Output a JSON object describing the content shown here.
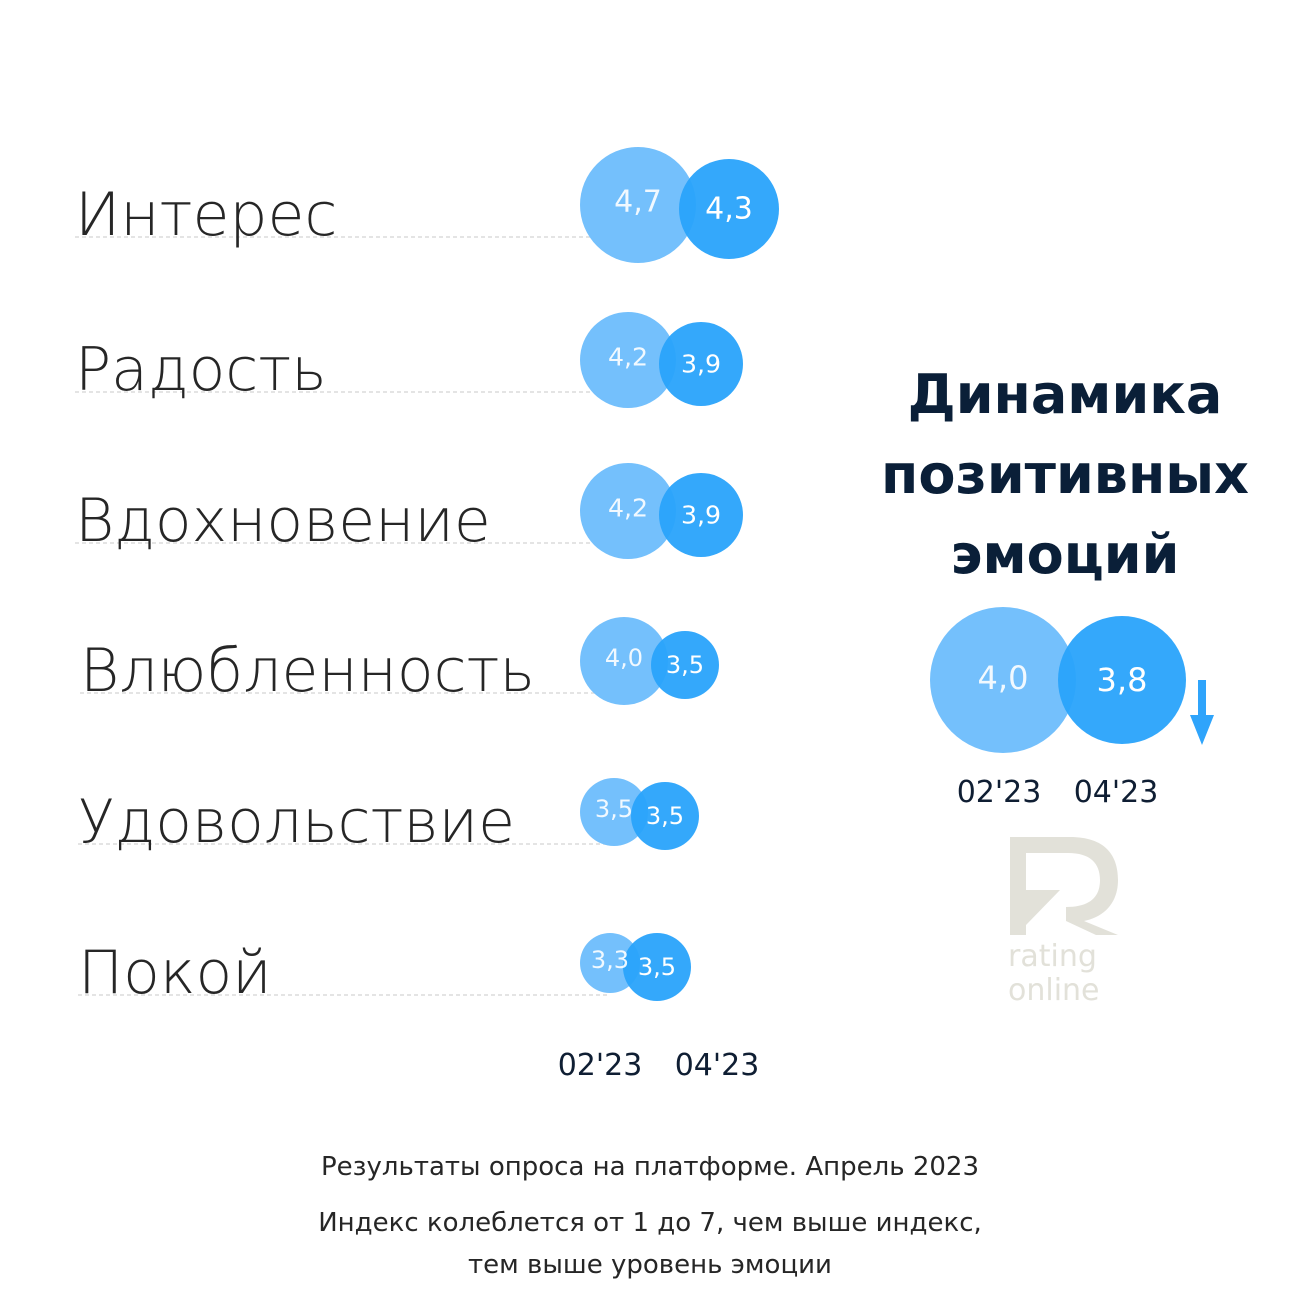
{
  "title_lines": [
    "Динамика",
    "позитивных",
    "эмоций"
  ],
  "periods": [
    "02'23",
    "04'23"
  ],
  "footer": {
    "line1": "Результаты опроса на платформе. Апрель 2023",
    "line2": "Индекс колеблется от 1 до 7, чем выше индекс,",
    "line3": "тем выше уровень эмоции"
  },
  "logo": {
    "line1": "rating",
    "line2": "online"
  },
  "colors": {
    "light": "#74c0fc",
    "dark": "#29a3fb",
    "arrow": "#2fa4fb"
  },
  "summary": {
    "values": [
      4.0,
      3.8
    ],
    "labels": [
      "4,0",
      "3,8"
    ],
    "trend": "down"
  },
  "chart_data": {
    "type": "bubble",
    "categories": [
      "Интерес",
      "Радость",
      "Вдохновение",
      "Влюбленность",
      "Удовольствие",
      "Покой"
    ],
    "series": [
      {
        "name": "02'23",
        "values": [
          4.7,
          4.2,
          4.2,
          4.0,
          3.5,
          3.3
        ],
        "labels": [
          "4,7",
          "4,2",
          "4,2",
          "4,0",
          "3,5",
          "3,3"
        ]
      },
      {
        "name": "04'23",
        "values": [
          4.3,
          3.9,
          3.9,
          3.5,
          3.5,
          3.5
        ],
        "labels": [
          "4,3",
          "3,9",
          "3,9",
          "3,5",
          "3,5",
          "3,5"
        ]
      }
    ]
  }
}
